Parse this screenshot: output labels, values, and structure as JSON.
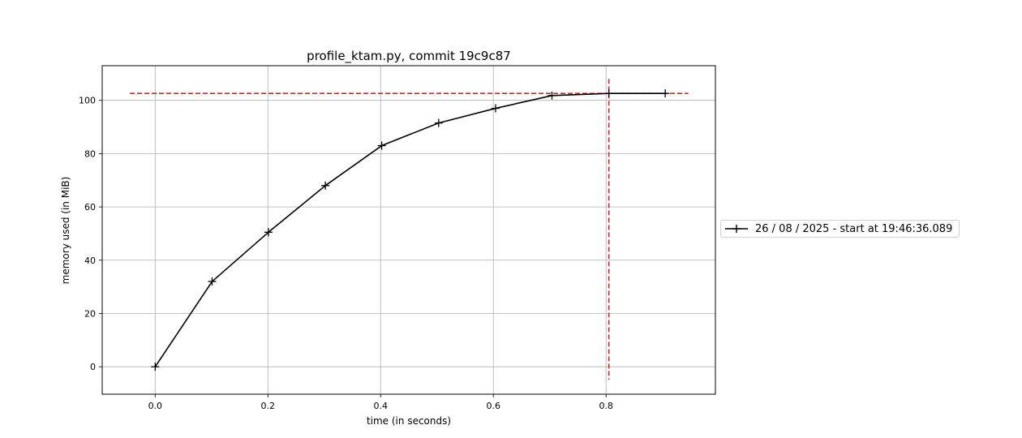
{
  "chart_data": {
    "type": "line",
    "title": "profile_ktam.py, commit 19c9c87",
    "xlabel": "time (in seconds)",
    "ylabel": "memory used (in MiB)",
    "xlim": [
      -0.094,
      0.994
    ],
    "ylim": [
      -10.3,
      113.0
    ],
    "xticks": [
      0.0,
      0.2,
      0.4,
      0.6,
      0.8
    ],
    "xtick_labels": [
      "0.0",
      "0.2",
      "0.4",
      "0.6",
      "0.8"
    ],
    "yticks": [
      0,
      20,
      40,
      60,
      80,
      100
    ],
    "ytick_labels": [
      "0",
      "20",
      "40",
      "60",
      "80",
      "100"
    ],
    "grid": true,
    "legend_placement": "center-right-outside",
    "series": [
      {
        "name": "26 / 08 / 2025 - start at 19:46:36.089",
        "color": "#000000",
        "marker": "+",
        "x": [
          0.0,
          0.101,
          0.201,
          0.302,
          0.402,
          0.503,
          0.604,
          0.704,
          0.805,
          0.905
        ],
        "y": [
          0.0,
          32.0,
          50.5,
          68.0,
          83.0,
          91.5,
          97.0,
          101.8,
          102.6,
          102.6
        ]
      }
    ],
    "annotations": [
      {
        "type": "hline",
        "y": 102.6,
        "x_range": [
          -0.045,
          0.946
        ],
        "color": "#d62728",
        "style": "dashed"
      },
      {
        "type": "vline",
        "x": 0.805,
        "y_range": [
          -4.9,
          108.0
        ],
        "color": "#d62728",
        "style": "dashed"
      }
    ]
  }
}
